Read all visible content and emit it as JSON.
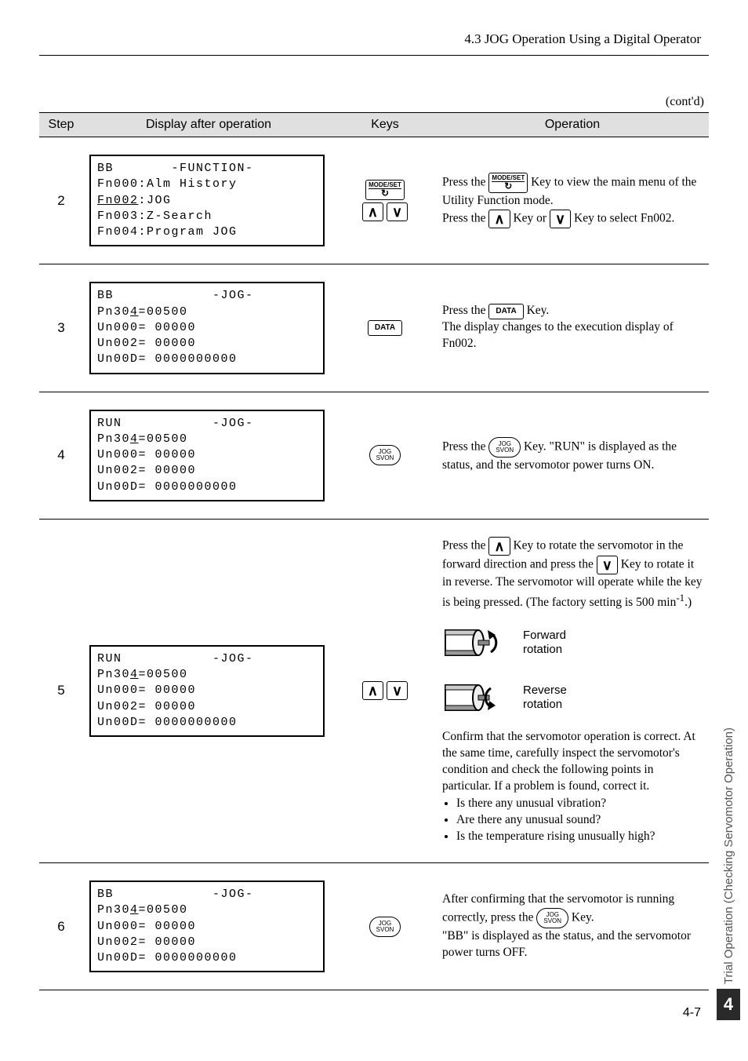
{
  "header": "4.3  JOG Operation Using a Digital Operator",
  "contd": "(cont'd)",
  "columns": {
    "step": "Step",
    "display": "Display after operation",
    "keys": "Keys",
    "op": "Operation"
  },
  "keys": {
    "modeset_top": "MODE/SET",
    "modeset_arrow": "↻",
    "up": "∧",
    "down": "∨",
    "data": "DATA",
    "jog_top": "JOG",
    "jog_bot": "SVON"
  },
  "motor": {
    "forward": "Forward\nrotation",
    "reverse": "Reverse\nrotation"
  },
  "rows": [
    {
      "step": "2",
      "lcd": "BB       -FUNCTION-\nFn000:Alm History\n<u>Fn002</u>:JOG\nFn003:Z-Search\nFn004:Program JOG",
      "keys_layout": "modeset_up_down",
      "op": "Press the {MODESET} Key to view the main menu of the Utility Function mode.<br>Press the {UP} Key or {DOWN} Key to select Fn002."
    },
    {
      "step": "3",
      "lcd": "BB            -JOG-\nPn30<u>4</u>=00500\nUn000= 00000\nUn002= 00000\nUn00D= 0000000000",
      "keys_layout": "data",
      "op": "Press the {DATA} Key.<br>The display changes to the execution display of Fn002."
    },
    {
      "step": "4",
      "lcd": "RUN           -JOG-\nPn30<u>4</u>=00500\nUn000= 00000\nUn002= 00000\nUn00D= 0000000000",
      "keys_layout": "jog",
      "op": "Press the {JOG} Key. \"RUN\" is displayed as the status, and the servomotor power turns ON."
    },
    {
      "step": "5",
      "lcd": "RUN           -JOG-\nPn30<u>4</u>=00500\nUn000= 00000\nUn002= 00000\nUn00D= 0000000000",
      "keys_layout": "up_down",
      "op_pre": "Press the {UP} Key to rotate the servomotor in the forward direction and press the {DOWN} Key to rotate it in reverse. The servomotor will operate while the key is being pressed. (The factory setting is 500 min<sup>-1</sup>.)",
      "op_post": "Confirm that the servomotor operation is correct. At the same time, carefully inspect the servomotor's condition and check the following points in particular. If a problem is found, correct it.",
      "op_bullets": [
        "Is there any unusual vibration?",
        "Are there any unusual sound?",
        "Is the temperature rising unusually high?"
      ]
    },
    {
      "step": "6",
      "lcd": "BB            -JOG-\nPn30<u>4</u>=00500\nUn000= 00000\nUn002= 00000\nUn00D= 0000000000",
      "keys_layout": "jog",
      "op": "After confirming that the servomotor is running correctly, press the {JOG} Key.<br>\"BB\" is displayed as the status, and the servomotor power turns OFF."
    }
  ],
  "side": {
    "text": "Trial Operation (Checking Servomotor Operation)",
    "num": "4"
  },
  "pagenum": "4-7"
}
